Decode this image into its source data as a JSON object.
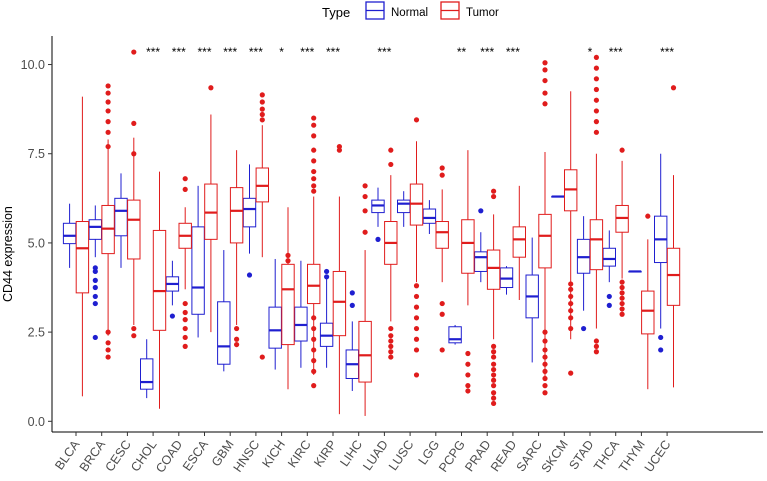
{
  "chart_data": {
    "type": "boxplot",
    "ylabel": "CD44 expression",
    "ylim": [
      -0.3,
      10.8
    ],
    "yticks": [
      0.0,
      2.5,
      5.0,
      7.5,
      10.0
    ],
    "ytick_labels": [
      "0.0",
      "2.5",
      "5.0",
      "7.5",
      "10.0"
    ],
    "legend": {
      "title": "Type",
      "position": "top",
      "entries": [
        {
          "name": "Normal",
          "color": "#1f1fd0"
        },
        {
          "name": "Tumor",
          "color": "#e01c1c"
        }
      ]
    },
    "categories": [
      "BLCA",
      "BRCA",
      "CESC",
      "CHOL",
      "COAD",
      "ESCA",
      "GBM",
      "HNSC",
      "KICH",
      "KIRC",
      "KIRP",
      "LIHC",
      "LUAD",
      "LUSC",
      "LGG",
      "PCPG",
      "PRAD",
      "READ",
      "SARC",
      "SKCM",
      "STAD",
      "THCA",
      "THYM",
      "UCEC"
    ],
    "significance": [
      "",
      "",
      "",
      "***",
      "***",
      "***",
      "***",
      "***",
      "*",
      "***",
      "***",
      "",
      "***",
      "",
      "",
      "**",
      "***",
      "***",
      "",
      "",
      "*",
      "***",
      "",
      "***"
    ],
    "series": [
      {
        "name": "Normal",
        "boxes": [
          {
            "min": 4.3,
            "q1": 4.98,
            "median": 5.2,
            "q3": 5.55,
            "max": 6.1,
            "outliers": []
          },
          {
            "min": 4.6,
            "q1": 5.1,
            "median": 5.45,
            "q3": 5.65,
            "max": 6.05,
            "outliers": [
              4.3,
              4.2,
              3.95,
              3.75,
              3.5,
              3.3,
              2.35
            ]
          },
          {
            "min": 4.3,
            "q1": 5.2,
            "median": 5.9,
            "q3": 6.25,
            "max": 6.95,
            "outliers": []
          },
          {
            "min": 0.65,
            "q1": 0.9,
            "median": 1.1,
            "q3": 1.75,
            "max": 2.3,
            "outliers": []
          },
          {
            "min": 3.25,
            "q1": 3.65,
            "median": 3.85,
            "q3": 4.05,
            "max": 4.5,
            "outliers": [
              2.95
            ]
          },
          {
            "min": 2.35,
            "q1": 3.0,
            "median": 3.75,
            "q3": 5.45,
            "max": 6.6,
            "outliers": []
          },
          {
            "min": 1.4,
            "q1": 1.6,
            "median": 2.1,
            "q3": 3.35,
            "max": 4.8,
            "outliers": []
          },
          {
            "min": 4.7,
            "q1": 5.45,
            "median": 5.95,
            "q3": 6.25,
            "max": 7.2,
            "outliers": [
              4.1
            ]
          },
          {
            "min": 1.45,
            "q1": 2.05,
            "median": 2.55,
            "q3": 3.2,
            "max": 4.55,
            "outliers": []
          },
          {
            "min": 1.5,
            "q1": 2.25,
            "median": 2.7,
            "q3": 3.2,
            "max": 4.5,
            "outliers": []
          },
          {
            "min": 1.5,
            "q1": 2.1,
            "median": 2.4,
            "q3": 2.75,
            "max": 4.0,
            "outliers": [
              4.2,
              4.05
            ]
          },
          {
            "min": 0.85,
            "q1": 1.2,
            "median": 1.6,
            "q3": 2.0,
            "max": 2.8,
            "outliers": [
              3.6,
              3.25
            ]
          },
          {
            "min": 5.45,
            "q1": 5.85,
            "median": 6.05,
            "q3": 6.2,
            "max": 6.55,
            "outliers": [
              5.1
            ]
          },
          {
            "min": 5.45,
            "q1": 5.85,
            "median": 6.1,
            "q3": 6.2,
            "max": 6.45,
            "outliers": []
          },
          {
            "min": 5.25,
            "q1": 5.55,
            "median": 5.7,
            "q3": 5.95,
            "max": 6.2,
            "outliers": []
          },
          {
            "min": 2.15,
            "q1": 2.2,
            "median": 2.3,
            "q3": 2.65,
            "max": 2.7,
            "outliers": []
          },
          {
            "min": 3.9,
            "q1": 4.2,
            "median": 4.6,
            "q3": 4.75,
            "max": 5.3,
            "outliers": [
              5.9
            ]
          },
          {
            "min": 3.55,
            "q1": 3.75,
            "median": 4.0,
            "q3": 4.3,
            "max": 4.35,
            "outliers": []
          },
          {
            "min": 1.65,
            "q1": 2.9,
            "median": 3.5,
            "q3": 4.1,
            "max": 5.15,
            "outliers": []
          },
          {
            "min": 6.3,
            "q1": 6.3,
            "median": 6.3,
            "q3": 6.3,
            "max": 6.3,
            "outliers": []
          },
          {
            "min": 3.1,
            "q1": 4.15,
            "median": 4.6,
            "q3": 5.1,
            "max": 5.75,
            "outliers": [
              2.6
            ]
          },
          {
            "min": 3.9,
            "q1": 4.35,
            "median": 4.55,
            "q3": 4.85,
            "max": 5.35,
            "outliers": [
              3.5,
              3.25
            ]
          },
          {
            "min": 4.2,
            "q1": 4.2,
            "median": 4.2,
            "q3": 4.2,
            "max": 4.2,
            "outliers": []
          },
          {
            "min": 2.6,
            "q1": 4.45,
            "median": 5.1,
            "q3": 5.75,
            "max": 7.5,
            "outliers": [
              2.35,
              2.0
            ]
          }
        ]
      },
      {
        "name": "Tumor",
        "boxes": [
          {
            "min": 0.7,
            "q1": 3.6,
            "median": 4.85,
            "q3": 5.6,
            "max": 9.1,
            "outliers": []
          },
          {
            "min": 2.4,
            "q1": 4.7,
            "median": 5.4,
            "q3": 6.05,
            "max": 7.9,
            "outliers": [
              9.4,
              9.2,
              8.95,
              8.7,
              8.4,
              8.1,
              7.7,
              2.5,
              2.2,
              2.0,
              1.8
            ]
          },
          {
            "min": 2.7,
            "q1": 4.55,
            "median": 5.65,
            "q3": 6.2,
            "max": 7.95,
            "outliers": [
              10.35,
              8.35,
              7.5,
              2.6,
              2.4
            ]
          },
          {
            "min": 0.35,
            "q1": 2.55,
            "median": 3.65,
            "q3": 5.35,
            "max": 7.0,
            "outliers": []
          },
          {
            "min": 3.7,
            "q1": 4.85,
            "median": 5.2,
            "q3": 5.55,
            "max": 6.0,
            "outliers": [
              6.8,
              6.5,
              3.3,
              3.05,
              2.85,
              2.6,
              2.35,
              2.1
            ]
          },
          {
            "min": 2.5,
            "q1": 5.1,
            "median": 5.85,
            "q3": 6.65,
            "max": 8.6,
            "outliers": [
              9.35
            ]
          },
          {
            "min": 2.7,
            "q1": 5.0,
            "median": 5.9,
            "q3": 6.55,
            "max": 7.6,
            "outliers": [
              2.6,
              2.3,
              2.15
            ]
          },
          {
            "min": 4.6,
            "q1": 6.15,
            "median": 6.6,
            "q3": 7.1,
            "max": 8.3,
            "outliers": [
              9.15,
              8.95,
              8.75,
              8.6,
              8.45,
              1.8
            ]
          },
          {
            "min": 0.9,
            "q1": 2.15,
            "median": 3.7,
            "q3": 4.4,
            "max": 6.0,
            "outliers": [
              4.65,
              4.5
            ]
          },
          {
            "min": 1.3,
            "q1": 3.3,
            "median": 3.8,
            "q3": 4.4,
            "max": 6.3,
            "outliers": [
              8.5,
              8.3,
              8.0,
              7.6,
              7.3,
              7.0,
              6.8,
              6.6,
              6.45,
              2.9,
              2.6,
              2.3,
              2.0,
              1.7,
              1.4,
              1.0
            ]
          },
          {
            "min": 0.2,
            "q1": 2.4,
            "median": 3.35,
            "q3": 4.2,
            "max": 6.3,
            "outliers": [
              7.7,
              7.6
            ]
          },
          {
            "min": 0.15,
            "q1": 1.1,
            "median": 1.85,
            "q3": 2.8,
            "max": 4.8,
            "outliers": [
              6.6,
              6.3,
              5.9,
              5.3
            ]
          },
          {
            "min": 2.8,
            "q1": 4.4,
            "median": 5.0,
            "q3": 5.6,
            "max": 6.9,
            "outliers": [
              7.6,
              7.2,
              2.6,
              2.4,
              2.25,
              2.1,
              1.95,
              1.8
            ]
          },
          {
            "min": 3.9,
            "q1": 5.5,
            "median": 6.1,
            "q3": 6.65,
            "max": 7.85,
            "outliers": [
              8.45,
              3.8,
              3.5,
              3.2,
              2.9,
              2.6,
              2.3,
              2.0,
              1.3
            ]
          },
          {
            "min": 3.9,
            "q1": 4.85,
            "median": 5.3,
            "q3": 5.6,
            "max": 6.5,
            "outliers": [
              7.1,
              6.9,
              3.3,
              3.0,
              2.0
            ]
          },
          {
            "min": 3.25,
            "q1": 4.15,
            "median": 5.0,
            "q3": 5.65,
            "max": 7.6,
            "outliers": [
              1.9,
              1.6,
              1.3,
              1.0,
              0.85
            ]
          },
          {
            "min": 2.3,
            "q1": 3.7,
            "median": 4.3,
            "q3": 4.8,
            "max": 5.8,
            "outliers": [
              6.45,
              6.3,
              2.1,
              1.95,
              1.8,
              1.6,
              1.45,
              1.3,
              1.15,
              1.0,
              0.8,
              0.65,
              0.5
            ]
          },
          {
            "min": 3.4,
            "q1": 4.6,
            "median": 5.1,
            "q3": 5.45,
            "max": 6.6,
            "outliers": []
          },
          {
            "min": 1.2,
            "q1": 4.3,
            "median": 5.2,
            "q3": 5.8,
            "max": 7.55,
            "outliers": [
              10.05,
              9.85,
              9.55,
              9.2,
              8.9,
              2.5,
              2.25,
              2.0,
              1.8,
              1.6,
              1.4,
              1.2,
              1.0,
              0.8
            ]
          },
          {
            "min": 2.3,
            "q1": 5.9,
            "median": 6.5,
            "q3": 7.05,
            "max": 9.25,
            "outliers": [
              3.85,
              3.7,
              3.5,
              3.3,
              3.1,
              2.9,
              2.6,
              1.35
            ]
          },
          {
            "min": 2.6,
            "q1": 4.25,
            "median": 5.1,
            "q3": 5.65,
            "max": 7.5,
            "outliers": [
              10.2,
              9.9,
              9.6,
              9.3,
              9.0,
              8.7,
              8.4,
              8.1,
              2.25,
              2.1,
              1.95
            ]
          },
          {
            "min": 4.0,
            "q1": 5.3,
            "median": 5.7,
            "q3": 6.05,
            "max": 7.3,
            "outliers": [
              7.6,
              3.9,
              3.75,
              3.6,
              3.45,
              3.3,
              3.15,
              3.0
            ]
          },
          {
            "min": 0.9,
            "q1": 2.45,
            "median": 3.1,
            "q3": 3.65,
            "max": 5.1,
            "outliers": [
              5.75
            ]
          },
          {
            "min": 0.95,
            "q1": 3.25,
            "median": 4.1,
            "q3": 4.85,
            "max": 6.9,
            "outliers": [
              9.35
            ]
          }
        ]
      }
    ]
  }
}
